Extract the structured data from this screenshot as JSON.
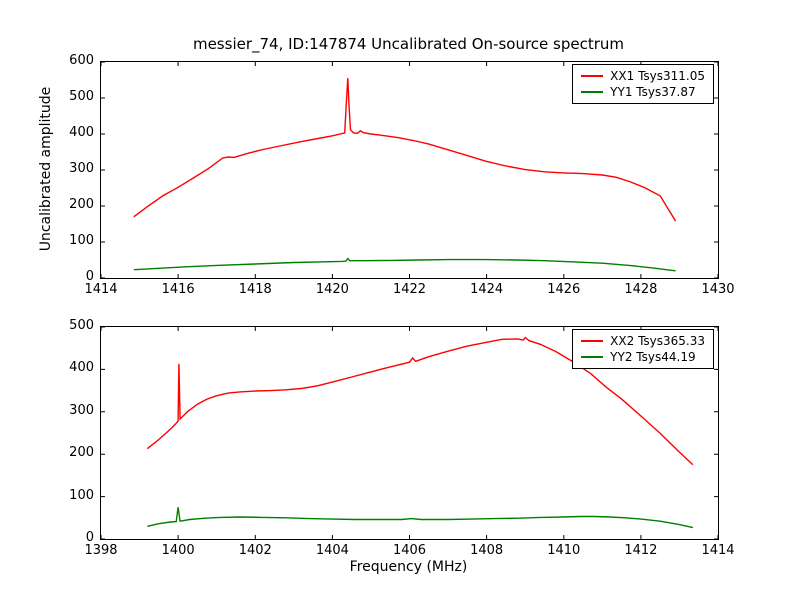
{
  "figure": {
    "title": "messier_74, ID:147874 Uncalibrated On-source spectrum",
    "ylabel": "Uncalibrated amplitude",
    "xlabel": "Frequency (MHz)"
  },
  "chart_data": [
    {
      "type": "line",
      "position": "top",
      "xlim": [
        1414,
        1430
      ],
      "ylim": [
        0,
        600
      ],
      "xticks": [
        1414,
        1416,
        1418,
        1420,
        1422,
        1424,
        1426,
        1428,
        1430
      ],
      "yticks": [
        0,
        100,
        200,
        300,
        400,
        500,
        600
      ],
      "grid": false,
      "legend_position": "upper right",
      "spectral_spike_mhz": 1420.4,
      "series": [
        {
          "name": "XX1 Tsys311.05",
          "color": "#ff0000",
          "points": [
            [
              1414.85,
              170
            ],
            [
              1415.2,
              198
            ],
            [
              1415.6,
              228
            ],
            [
              1416.0,
              252
            ],
            [
              1416.4,
              278
            ],
            [
              1416.8,
              305
            ],
            [
              1417.15,
              333
            ],
            [
              1417.3,
              336
            ],
            [
              1417.45,
              335
            ],
            [
              1417.8,
              346
            ],
            [
              1418.2,
              357
            ],
            [
              1418.7,
              368
            ],
            [
              1419.2,
              379
            ],
            [
              1419.7,
              389
            ],
            [
              1420.0,
              395
            ],
            [
              1420.2,
              400
            ],
            [
              1420.32,
              403
            ],
            [
              1420.37,
              500
            ],
            [
              1420.4,
              555
            ],
            [
              1420.43,
              480
            ],
            [
              1420.47,
              412
            ],
            [
              1420.55,
              403
            ],
            [
              1420.65,
              402
            ],
            [
              1420.73,
              409
            ],
            [
              1420.8,
              404
            ],
            [
              1421.0,
              400
            ],
            [
              1421.3,
              396
            ],
            [
              1421.7,
              390
            ],
            [
              1422.1,
              382
            ],
            [
              1422.5,
              372
            ],
            [
              1423.0,
              356
            ],
            [
              1423.5,
              340
            ],
            [
              1424.0,
              324
            ],
            [
              1424.5,
              311
            ],
            [
              1425.0,
              301
            ],
            [
              1425.5,
              295
            ],
            [
              1426.0,
              292
            ],
            [
              1426.5,
              290
            ],
            [
              1427.0,
              286
            ],
            [
              1427.35,
              280
            ],
            [
              1427.7,
              268
            ],
            [
              1428.1,
              251
            ],
            [
              1428.5,
              228
            ],
            [
              1428.9,
              158
            ]
          ]
        },
        {
          "name": "YY1 Tsys37.87",
          "color": "#008000",
          "points": [
            [
              1414.85,
              23
            ],
            [
              1415.5,
              27
            ],
            [
              1416.2,
              31
            ],
            [
              1417.0,
              35
            ],
            [
              1418.0,
              39
            ],
            [
              1419.0,
              43
            ],
            [
              1419.8,
              45
            ],
            [
              1420.25,
              46
            ],
            [
              1420.35,
              47
            ],
            [
              1420.4,
              54
            ],
            [
              1420.45,
              48
            ],
            [
              1420.8,
              48
            ],
            [
              1421.5,
              49
            ],
            [
              1422.2,
              50
            ],
            [
              1423.0,
              51
            ],
            [
              1424.0,
              51
            ],
            [
              1424.8,
              50
            ],
            [
              1425.5,
              48
            ],
            [
              1426.2,
              45
            ],
            [
              1427.0,
              41
            ],
            [
              1427.7,
              35
            ],
            [
              1428.3,
              28
            ],
            [
              1428.9,
              20
            ]
          ]
        }
      ]
    },
    {
      "type": "line",
      "position": "bottom",
      "xlabel": "Frequency (MHz)",
      "xlim": [
        1398,
        1414
      ],
      "ylim": [
        0,
        500
      ],
      "xticks": [
        1398,
        1400,
        1402,
        1404,
        1406,
        1408,
        1410,
        1412,
        1414
      ],
      "yticks": [
        0,
        100,
        200,
        300,
        400,
        500
      ],
      "grid": false,
      "legend_position": "upper right",
      "spectral_spike_mhz": 1400.0,
      "series": [
        {
          "name": "XX2 Tsys365.33",
          "color": "#ff0000",
          "points": [
            [
              1399.2,
              213
            ],
            [
              1399.45,
              231
            ],
            [
              1399.7,
              251
            ],
            [
              1399.9,
              268
            ],
            [
              1400.0,
              278
            ],
            [
              1400.02,
              413
            ],
            [
              1400.05,
              283
            ],
            [
              1400.25,
              301
            ],
            [
              1400.5,
              318
            ],
            [
              1400.75,
              330
            ],
            [
              1401.0,
              338
            ],
            [
              1401.3,
              344
            ],
            [
              1401.6,
              347
            ],
            [
              1402.0,
              349
            ],
            [
              1402.4,
              350
            ],
            [
              1402.8,
              352
            ],
            [
              1403.2,
              355
            ],
            [
              1403.6,
              361
            ],
            [
              1404.0,
              370
            ],
            [
              1404.5,
              382
            ],
            [
              1405.0,
              394
            ],
            [
              1405.5,
              406
            ],
            [
              1406.0,
              417
            ],
            [
              1406.08,
              427
            ],
            [
              1406.16,
              419
            ],
            [
              1406.5,
              430
            ],
            [
              1407.0,
              443
            ],
            [
              1407.5,
              455
            ],
            [
              1408.0,
              464
            ],
            [
              1408.4,
              471
            ],
            [
              1408.8,
              472
            ],
            [
              1408.95,
              469
            ],
            [
              1409.0,
              475
            ],
            [
              1409.1,
              468
            ],
            [
              1409.4,
              459
            ],
            [
              1409.8,
              442
            ],
            [
              1410.2,
              420
            ],
            [
              1410.7,
              390
            ],
            [
              1411.1,
              358
            ],
            [
              1411.5,
              330
            ],
            [
              1412.0,
              290
            ],
            [
              1412.5,
              249
            ],
            [
              1413.0,
              205
            ],
            [
              1413.35,
              175
            ]
          ]
        },
        {
          "name": "YY2 Tsys44.19",
          "color": "#008000",
          "points": [
            [
              1399.2,
              30
            ],
            [
              1399.5,
              36
            ],
            [
              1399.8,
              40
            ],
            [
              1399.95,
              41
            ],
            [
              1400.0,
              75
            ],
            [
              1400.05,
              42
            ],
            [
              1400.3,
              46
            ],
            [
              1400.7,
              49
            ],
            [
              1401.1,
              51
            ],
            [
              1401.6,
              52
            ],
            [
              1402.2,
              51
            ],
            [
              1402.8,
              50
            ],
            [
              1403.4,
              48
            ],
            [
              1404.0,
              47
            ],
            [
              1404.6,
              46
            ],
            [
              1405.2,
              46
            ],
            [
              1405.8,
              46
            ],
            [
              1406.05,
              48
            ],
            [
              1406.3,
              46
            ],
            [
              1407.0,
              46
            ],
            [
              1407.6,
              47
            ],
            [
              1408.2,
              48
            ],
            [
              1408.8,
              49
            ],
            [
              1409.4,
              51
            ],
            [
              1410.0,
              52
            ],
            [
              1410.4,
              53
            ],
            [
              1410.8,
              53
            ],
            [
              1411.2,
              52
            ],
            [
              1411.6,
              50
            ],
            [
              1412.0,
              47
            ],
            [
              1412.5,
              42
            ],
            [
              1413.0,
              34
            ],
            [
              1413.35,
              27
            ]
          ]
        }
      ]
    }
  ]
}
